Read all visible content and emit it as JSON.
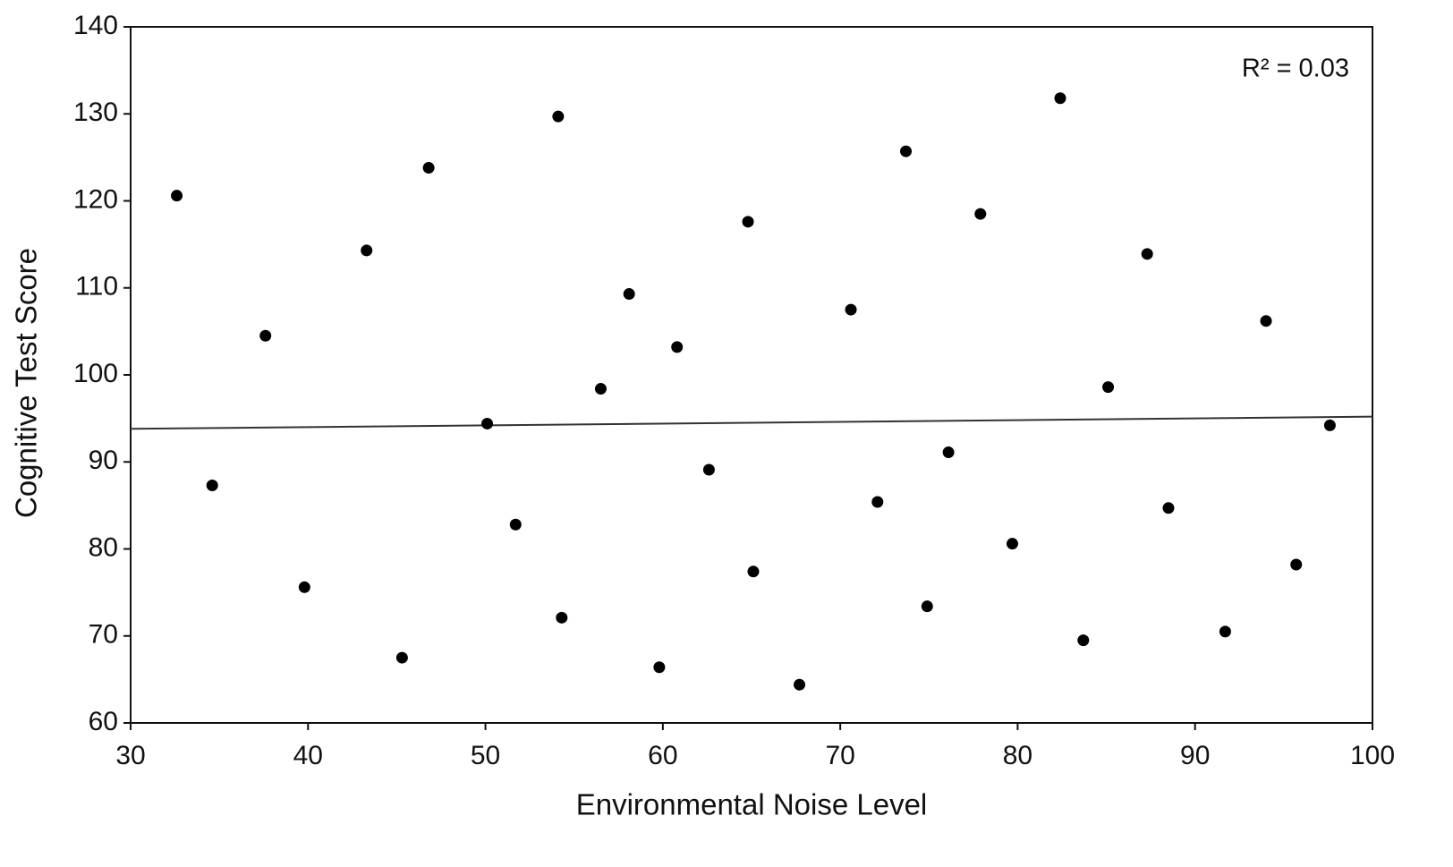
{
  "chart_data": {
    "type": "scatter",
    "xlabel": "Environmental Noise Level",
    "ylabel": "Cognitive Test Score",
    "annotation": "R² = 0.03",
    "color": "#000000",
    "x": [
      32.6,
      34.6,
      37.6,
      39.8,
      43.3,
      45.3,
      46.8,
      50.1,
      51.7,
      54.1,
      54.3,
      56.5,
      58.1,
      59.8,
      60.8,
      62.6,
      64.8,
      65.1,
      67.7,
      70.6,
      72.1,
      73.7,
      74.9,
      76.1,
      77.9,
      79.7,
      82.4,
      83.7,
      85.1,
      87.3,
      88.5,
      91.7,
      94.0,
      95.7,
      97.6
    ],
    "values": [
      120.6,
      87.3,
      104.5,
      75.6,
      114.3,
      67.5,
      123.8,
      94.4,
      82.8,
      129.7,
      72.1,
      98.4,
      109.3,
      66.4,
      103.2,
      89.1,
      117.6,
      77.4,
      64.4,
      107.5,
      85.4,
      125.7,
      73.4,
      91.1,
      118.5,
      80.6,
      131.8,
      69.5,
      98.6,
      113.9,
      84.7,
      70.5,
      106.2,
      78.2,
      94.2
    ],
    "trendline": {
      "x": [
        30,
        100
      ],
      "y": [
        93.8,
        95.2
      ],
      "color": "#333333"
    },
    "xlim": [
      30,
      100
    ],
    "xticks": [
      30,
      40,
      50,
      60,
      70,
      80,
      90,
      100
    ],
    "ylim": [
      60,
      140
    ],
    "yticks": [
      60,
      70,
      80,
      90,
      100,
      110,
      120,
      130,
      140
    ],
    "grid": false
  }
}
